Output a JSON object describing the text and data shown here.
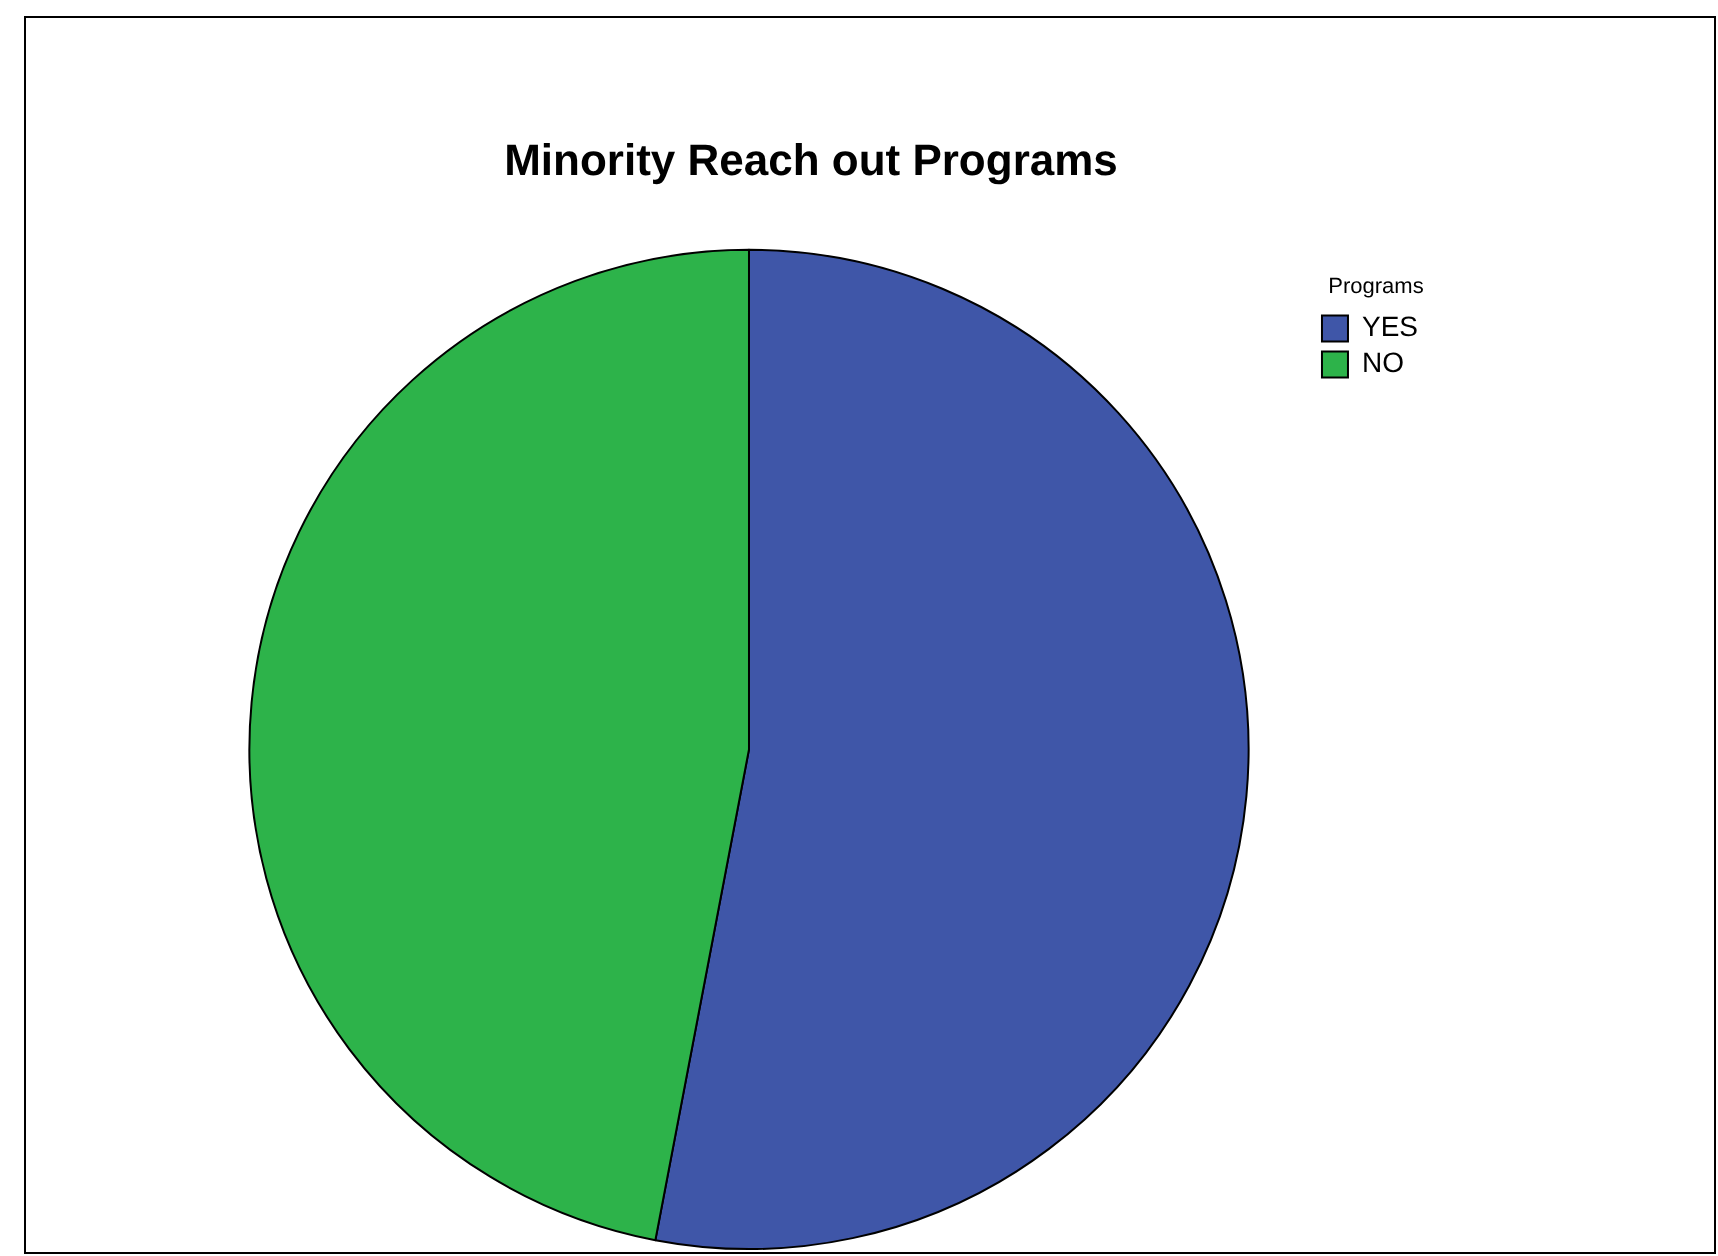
{
  "chart_data": {
    "type": "pie",
    "title": "Minority Reach out Programs",
    "legend_title": "Programs",
    "legend": "top right",
    "categories": [
      "YES",
      "NO"
    ],
    "values": [
      53,
      47
    ],
    "colors": [
      "#3f56a8",
      "#2db34a"
    ]
  }
}
